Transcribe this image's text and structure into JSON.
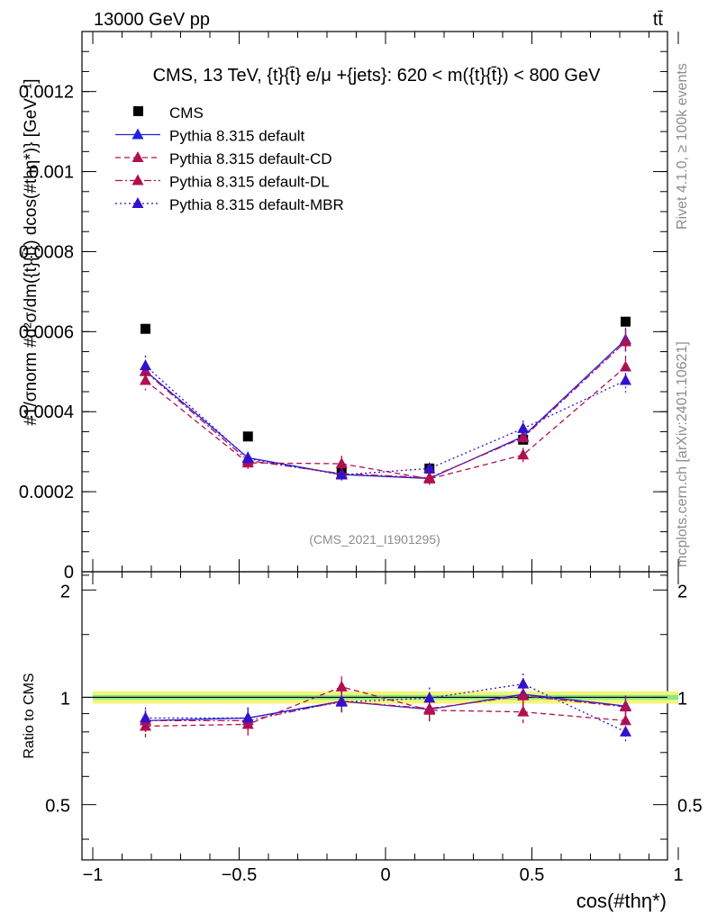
{
  "header": {
    "energy_label": "13000 GeV pp",
    "process_label": "tt̄"
  },
  "side": {
    "rivet_label": "Rivet 4.1.0, ≥ 100k events",
    "source_label": "mcplots.cern.ch [arXiv:2401.10621]"
  },
  "chart_data": {
    "type": "scatter",
    "title": "CMS, 13 TeV, {t}{t̄} e/μ +{jets}: 620 < m({t}{t̄}) < 800 GeV",
    "analysis_id": "(CMS_2021_I1901295)",
    "xlabel": "cos(#thη*)",
    "ylabel": "#1/σnorm #d²σ/dm({t}{t̄}) dcos(#thη*)} [GeV⁻¹]",
    "ratio_ylabel": "Ratio to CMS",
    "xlim": [
      -1,
      1
    ],
    "ylim": [
      0,
      0.00135
    ],
    "ratio_ylim": [
      0.35,
      2.25
    ],
    "x_ticks": [
      "−1",
      "−0.5",
      "0",
      "0.5",
      "1"
    ],
    "x_tick_values": [
      -1,
      -0.5,
      0,
      0.5,
      1
    ],
    "y_ticks": [
      "0",
      "0.0002",
      "0.0004",
      "0.0006",
      "0.0008",
      "0.001",
      "0.0012"
    ],
    "y_tick_values": [
      0,
      0.0002,
      0.0004,
      0.0006,
      0.0008,
      0.001,
      0.0012
    ],
    "ratio_ticks": [
      "0.5",
      "1",
      "2"
    ],
    "ratio_tick_values": [
      0.5,
      1,
      2
    ],
    "x": [
      -0.82,
      -0.47,
      -0.15,
      0.15,
      0.47,
      0.82
    ],
    "series": [
      {
        "name": "CMS",
        "color": "#000000",
        "style": "data",
        "values": [
          0.000607,
          0.000338,
          0.000252,
          0.000258,
          0.00033,
          0.000625
        ],
        "ratio": [
          1,
          1,
          1,
          1,
          1,
          1
        ]
      },
      {
        "name": "Pythia 8.315 default",
        "color": "#2222dd",
        "style": "solid",
        "values": [
          0.000502,
          0.000285,
          0.000243,
          0.000233,
          0.000338,
          0.00058
        ],
        "errors": [
          2.5e-05,
          1.5e-05,
          1.5e-05,
          1.5e-05,
          1.8e-05,
          3e-05
        ],
        "ratio": [
          0.86,
          0.875,
          0.975,
          0.925,
          1.02,
          0.945
        ]
      },
      {
        "name": "Pythia 8.315 default-CD",
        "color": "#b01050",
        "style": "dashed",
        "values": [
          0.000478,
          0.000272,
          0.00027,
          0.000232,
          0.000292,
          0.000512
        ],
        "errors": [
          2.5e-05,
          1.5e-05,
          2e-05,
          1.5e-05,
          1.8e-05,
          2.8e-05
        ],
        "ratio": [
          0.83,
          0.84,
          1.07,
          0.92,
          0.91,
          0.86
        ]
      },
      {
        "name": "Pythia 8.315 default-DL",
        "color": "#b01050",
        "style": "dashdot",
        "values": [
          0.0005,
          0.000278,
          0.000245,
          0.000235,
          0.000335,
          0.000575
        ],
        "errors": [
          2.5e-05,
          1.5e-05,
          1.5e-05,
          1.5e-05,
          1.8e-05,
          3e-05
        ],
        "ratio": [
          0.86,
          0.86,
          0.975,
          0.93,
          1.01,
          0.94
        ]
      },
      {
        "name": "Pythia 8.315 default-MBR",
        "color": "#3311cc",
        "style": "dotted",
        "values": [
          0.000515,
          0.000283,
          0.000242,
          0.000258,
          0.000358,
          0.000478
        ],
        "errors": [
          2.5e-05,
          1.5e-05,
          1.5e-05,
          1.5e-05,
          2e-05,
          3e-05
        ],
        "ratio": [
          0.875,
          0.875,
          0.97,
          0.995,
          1.09,
          0.8
        ]
      }
    ]
  }
}
